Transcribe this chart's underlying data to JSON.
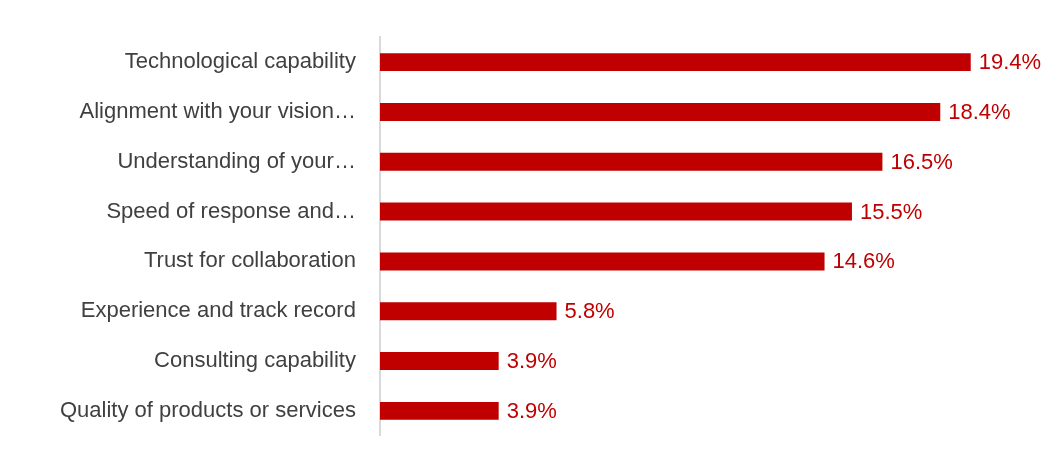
{
  "chart_data": {
    "type": "bar",
    "orientation": "horizontal",
    "categories": [
      "Technological capability",
      "Alignment with your vision…",
      "Understanding of your…",
      "Speed of response and…",
      "Trust for collaboration",
      "Experience and track record",
      "Consulting capability",
      "Quality of products or services"
    ],
    "values": [
      19.4,
      18.4,
      16.5,
      15.5,
      14.6,
      5.8,
      3.9,
      3.9
    ],
    "value_labels": [
      "19.4%",
      "18.4%",
      "16.5%",
      "15.5%",
      "14.6%",
      "5.8%",
      "3.9%",
      "3.9%"
    ],
    "color": "#c00000",
    "grid": false,
    "legend": false,
    "tick_labels": "y"
  }
}
